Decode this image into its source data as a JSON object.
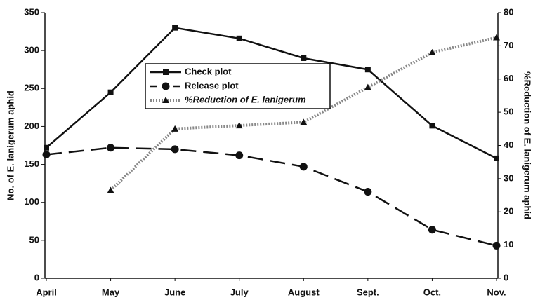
{
  "chart_data": {
    "type": "line",
    "categories": [
      "April",
      "May",
      "June",
      "July",
      "August",
      "Sept.",
      "Oct.",
      "Nov."
    ],
    "ylabel": "No. of E. lanigerum aphid",
    "y2label": "%Reduction of E. lanigerum aphid",
    "ylim": [
      0,
      350
    ],
    "yticks": [
      0,
      50,
      100,
      150,
      200,
      250,
      300,
      350
    ],
    "y2lim": [
      0,
      80
    ],
    "y2ticks": [
      0,
      10,
      20,
      30,
      40,
      50,
      60,
      70,
      80
    ],
    "series": [
      {
        "name": "Check plot",
        "color": "#111111",
        "line_style": "solid",
        "marker": "square",
        "values": [
          172,
          245,
          330,
          316,
          290,
          275,
          201,
          158
        ]
      },
      {
        "name": "Release plot",
        "color": "#111111",
        "line_style": "dashed",
        "marker": "circle",
        "values": [
          163,
          172,
          170,
          162,
          147,
          114,
          64,
          43
        ]
      },
      {
        "name": "%Reduction of E. lanigerum",
        "color": "#888888",
        "line_style": "dotted",
        "marker": "triangle",
        "axis": "y2",
        "values": [
          null,
          26.5,
          45,
          46,
          47,
          57.5,
          68,
          72.5
        ]
      }
    ]
  }
}
